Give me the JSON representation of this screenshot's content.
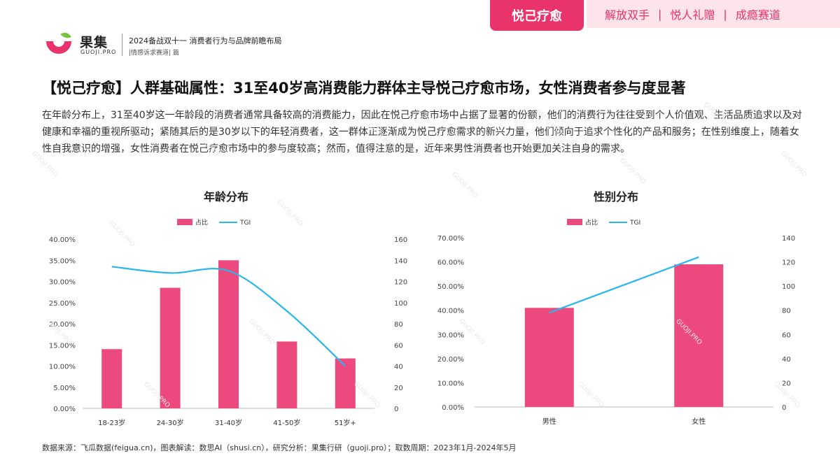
{
  "brand": {
    "name": "果集",
    "domain": "GUOJI.PRO"
  },
  "report": {
    "title": "2024备战双十一 消费者行为与品牌前瞻布局",
    "subtitle": "|情感诉求赛道| 篇"
  },
  "tabs": {
    "active": "悦己疗愈",
    "others": [
      "解放双手",
      "悦人礼赠",
      "成瘾赛道"
    ],
    "separator": "|"
  },
  "page_title": "【悦己疗愈】人群基础属性：31至40岁高消费能力群体主导悦己疗愈市场，女性消费者参与度显著",
  "description": "在年龄分布上，31至40岁这一年龄段的消费者通常具备较高的消费能力，因此在悦己疗愈市场中占据了显著的份额，他们的消费行为往往受到个人价值观、生活品质追求以及对健康和幸福的重视所驱动；紧随其后的是30岁以下的年轻消费者，这一群体正逐渐成为悦己疗愈需求的新兴力量，他们倾向于追求个性化的产品和服务；在性别维度上，随着女性自我意识的增强，女性消费者在悦己疗愈市场中的参与度较高；然而，值得注意的是，近年来男性消费者也开始更加关注自身的需求。",
  "source": "数据来源：飞瓜数据(feigua.cn)，图表解读：数思AI（shusi.cn），研究分析：果集行研（guoji.pro）；取数周期：2023年1月-2024年5月",
  "colors": {
    "accent": "#e8336b",
    "bar": "#ec4a7e",
    "line": "#29b6e8"
  },
  "chart_data": [
    {
      "type": "bar",
      "title": "年龄分布",
      "categories": [
        "18-23岁",
        "24-30岁",
        "31-40岁",
        "41-50岁",
        "51岁+"
      ],
      "series": [
        {
          "name": "占比",
          "kind": "bar",
          "axis": "left",
          "values": [
            0.14,
            0.285,
            0.35,
            0.158,
            0.118
          ]
        },
        {
          "name": "TGI",
          "kind": "line",
          "axis": "right",
          "values": [
            134,
            128,
            130,
            92,
            40
          ]
        }
      ],
      "y_left": {
        "min": 0,
        "max": 0.4,
        "ticks": [
          "0.00%",
          "5.00%",
          "10.00%",
          "15.00%",
          "20.00%",
          "25.00%",
          "30.00%",
          "35.00%",
          "40.00%"
        ]
      },
      "y_right": {
        "min": 0,
        "max": 160,
        "ticks": [
          "0",
          "20",
          "40",
          "60",
          "80",
          "100",
          "120",
          "140",
          "160"
        ]
      },
      "legend": "top-center",
      "grid": false
    },
    {
      "type": "bar",
      "title": "性别分布",
      "categories": [
        "男性",
        "女性"
      ],
      "series": [
        {
          "name": "占比",
          "kind": "bar",
          "axis": "left",
          "values": [
            0.41,
            0.59
          ]
        },
        {
          "name": "TGI",
          "kind": "line",
          "axis": "right",
          "values": [
            78,
            124
          ]
        }
      ],
      "y_left": {
        "min": 0,
        "max": 0.7,
        "ticks": [
          "0.00%",
          "10.00%",
          "20.00%",
          "30.00%",
          "40.00%",
          "50.00%",
          "60.00%",
          "70.00%"
        ]
      },
      "y_right": {
        "min": 0,
        "max": 140,
        "ticks": [
          "0",
          "20",
          "40",
          "60",
          "80",
          "100",
          "120",
          "140"
        ]
      },
      "legend": "top-center",
      "grid": false
    }
  ]
}
